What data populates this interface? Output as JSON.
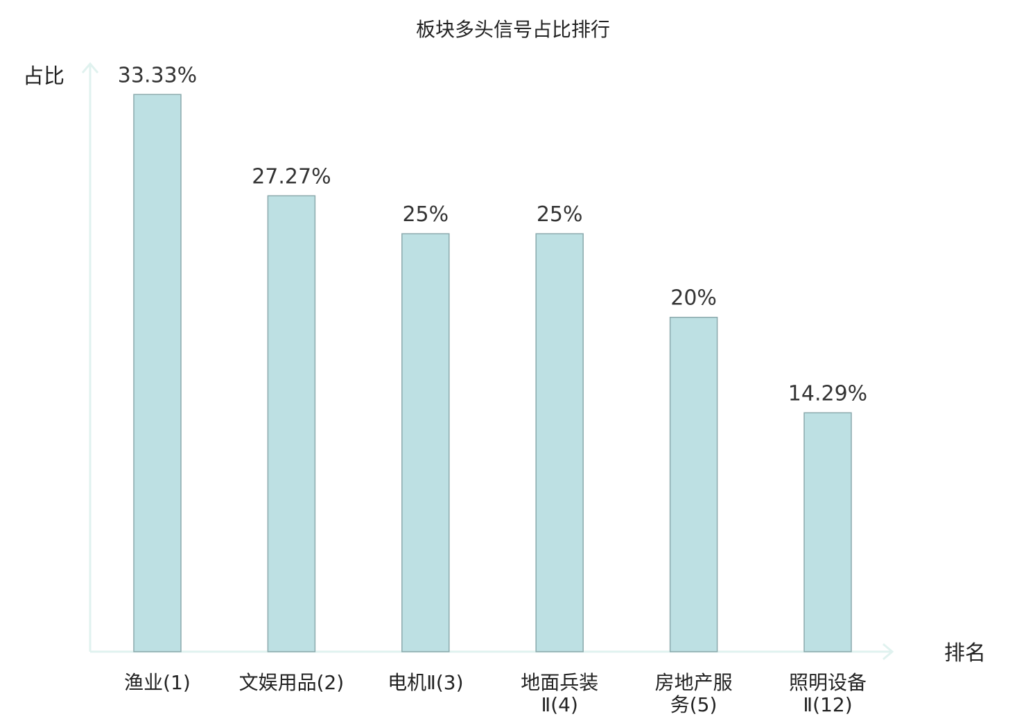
{
  "chart_data": {
    "type": "bar",
    "title": "板块多头信号占比排行",
    "ylabel": "占比",
    "xlabel": "排名",
    "categories": [
      [
        "渔业(1)"
      ],
      [
        "文娱用品(2)"
      ],
      [
        "电机Ⅱ(3)"
      ],
      [
        "地面兵装",
        "Ⅱ(4)"
      ],
      [
        "房地产服",
        "务(5)"
      ],
      [
        "照明设备",
        "Ⅱ(12)"
      ]
    ],
    "values": [
      33.33,
      27.27,
      25,
      25,
      20,
      14.29
    ],
    "value_labels": [
      "33.33%",
      "27.27%",
      "25%",
      "25%",
      "20%",
      "14.29%"
    ],
    "highlight_index": 5,
    "ylim": [
      0,
      35
    ],
    "grid": false,
    "colors": {
      "bar_fill": "#bde0e3",
      "bar_stroke": "#8aa9ac",
      "axis": "#e0f2ef",
      "highlight_text": "#dd1111",
      "text": "#222222"
    }
  }
}
